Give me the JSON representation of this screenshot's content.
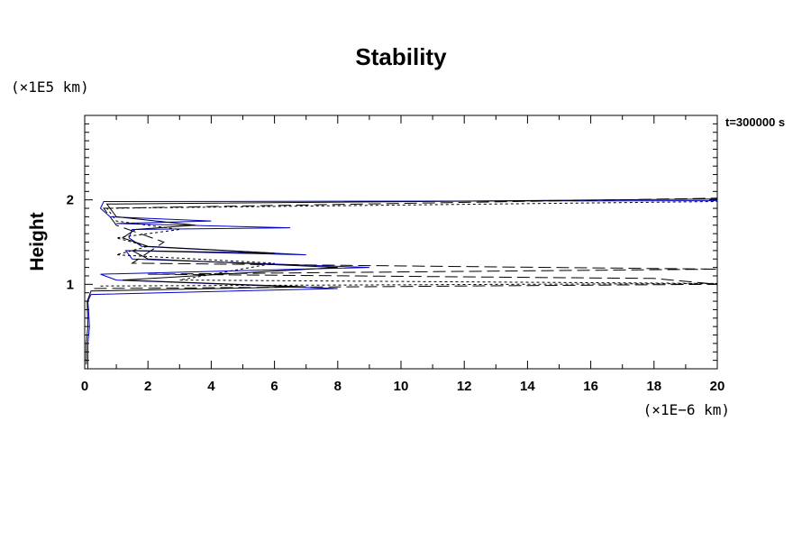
{
  "chart_data": {
    "type": "line",
    "title": "Stability",
    "ylabel": "Height",
    "yunit": "(×1E5 km)",
    "xunit": "(×1E−6 km)",
    "annotation": "t=300000 s",
    "xlim": [
      0,
      20
    ],
    "ylim": [
      0,
      3
    ],
    "xticks": [
      0,
      2,
      4,
      6,
      8,
      10,
      12,
      14,
      16,
      18,
      20
    ],
    "xtick_labels": [
      "0",
      "2",
      "4",
      "6",
      "8",
      "10",
      "12",
      "14",
      "16",
      "18",
      "20"
    ],
    "yticks": [
      1,
      2
    ],
    "ytick_labels": [
      "1",
      "2"
    ],
    "grid": false,
    "series": [
      {
        "color": "#0000cc",
        "dash": "solid",
        "x": [
          0.1,
          0.1,
          0.15,
          0.12,
          0.1,
          0.2,
          8,
          1.0,
          0.5,
          9,
          1.5,
          1.3,
          7,
          1.8,
          1.4,
          1.5,
          6.5,
          1.0,
          4,
          0.8,
          0.5,
          0.6,
          20,
          20
        ],
        "y": [
          0.0,
          0.3,
          0.5,
          0.7,
          0.8,
          0.88,
          0.95,
          1.05,
          1.12,
          1.2,
          1.3,
          1.4,
          1.35,
          1.45,
          1.55,
          1.65,
          1.67,
          1.72,
          1.75,
          1.8,
          1.9,
          1.98,
          1.99,
          2.0
        ]
      },
      {
        "color": "#000000",
        "dash": "solid",
        "x": [
          0.05,
          0.05,
          0.1,
          0.08,
          0.2,
          7,
          1.2,
          8,
          2.0,
          1.5,
          6,
          2.0,
          1.2,
          1.6,
          3.5,
          1.0,
          0.7,
          20
        ],
        "y": [
          0.05,
          0.3,
          0.5,
          0.8,
          0.92,
          0.97,
          1.05,
          1.2,
          1.3,
          1.4,
          1.37,
          1.45,
          1.55,
          1.65,
          1.7,
          1.8,
          1.95,
          2.01
        ]
      },
      {
        "color": "#000000",
        "dash": "dashed",
        "x": [
          0.3,
          20,
          18,
          2,
          20,
          1.5,
          2.5,
          1.0,
          0.6,
          20
        ],
        "y": [
          0.95,
          1.0,
          1.07,
          1.12,
          1.18,
          1.25,
          1.5,
          1.7,
          1.9,
          2.02
        ]
      },
      {
        "color": "#000000",
        "dash": "dotted",
        "x": [
          0.5,
          20,
          3,
          6,
          1.0,
          2.0,
          1.0,
          3.0,
          1.0,
          0.7,
          20
        ],
        "y": [
          0.98,
          1.01,
          1.05,
          1.25,
          1.35,
          1.45,
          1.55,
          1.65,
          1.75,
          1.9,
          1.98
        ]
      }
    ]
  }
}
